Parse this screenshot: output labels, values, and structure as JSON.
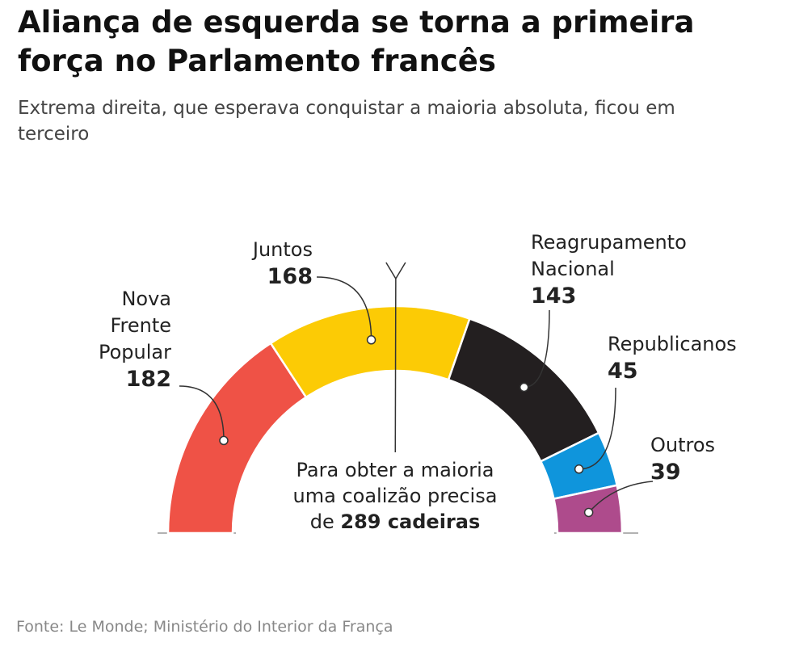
{
  "chart_data": {
    "type": "parliament",
    "title": "Aliança de esquerda se torna a primeira força no Parlamento francês",
    "subtitle": "Extrema direita, que esperava conquistar a maioria absoluta, ficou em terceiro",
    "categories": [
      "Nova Frente Popular",
      "Juntos",
      "Reagrupamento Nacional",
      "Republicanos",
      "Outros"
    ],
    "values": [
      182,
      168,
      143,
      45,
      39
    ],
    "colors": [
      "#ef5246",
      "#fccb05",
      "#231f20",
      "#0f95dc",
      "#ae4b8c"
    ],
    "majority": {
      "value": 289,
      "label": "289 cadeiras"
    },
    "annotation": [
      "Para obter a maioria",
      "uma coalizão precisa",
      "de"
    ],
    "source": "Fonte: Le Monde; Ministério do Interior da França"
  }
}
